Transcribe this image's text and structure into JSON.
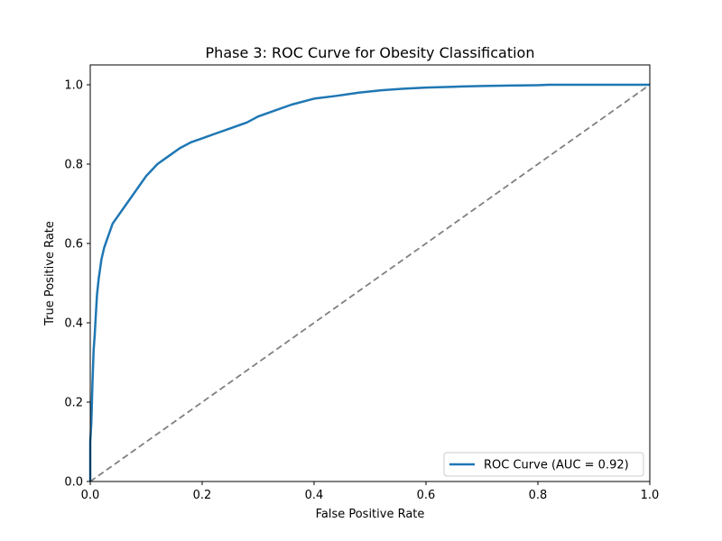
{
  "chart_data": {
    "type": "line",
    "title": "Phase 3: ROC Curve for Obesity Classification",
    "xlabel": "False Positive Rate",
    "ylabel": "True Positive Rate",
    "xlim": [
      0.0,
      1.0
    ],
    "ylim": [
      0.0,
      1.05
    ],
    "xticks": [
      "0.0",
      "0.2",
      "0.4",
      "0.6",
      "0.8",
      "1.0"
    ],
    "yticks": [
      "0.0",
      "0.2",
      "0.4",
      "0.6",
      "0.8",
      "1.0"
    ],
    "legend_position": "lower-right",
    "grid": false,
    "series": [
      {
        "name": "ROC Curve (AUC = 0.92)",
        "color": "#1f77b4",
        "style": "solid",
        "x": [
          0.0,
          0.0,
          0.002,
          0.003,
          0.004,
          0.005,
          0.006,
          0.008,
          0.01,
          0.012,
          0.015,
          0.018,
          0.02,
          0.025,
          0.03,
          0.035,
          0.04,
          0.05,
          0.06,
          0.07,
          0.08,
          0.09,
          0.1,
          0.11,
          0.12,
          0.14,
          0.16,
          0.18,
          0.2,
          0.22,
          0.25,
          0.28,
          0.3,
          0.33,
          0.36,
          0.4,
          0.44,
          0.48,
          0.52,
          0.56,
          0.6,
          0.65,
          0.7,
          0.75,
          0.8,
          0.82,
          0.9,
          1.0
        ],
        "y": [
          0.0,
          0.1,
          0.15,
          0.2,
          0.25,
          0.29,
          0.33,
          0.37,
          0.42,
          0.47,
          0.51,
          0.54,
          0.56,
          0.59,
          0.61,
          0.63,
          0.65,
          0.67,
          0.69,
          0.71,
          0.73,
          0.75,
          0.77,
          0.785,
          0.8,
          0.82,
          0.84,
          0.855,
          0.865,
          0.875,
          0.89,
          0.905,
          0.92,
          0.935,
          0.95,
          0.965,
          0.972,
          0.98,
          0.986,
          0.99,
          0.993,
          0.995,
          0.997,
          0.998,
          0.999,
          1.0,
          1.0,
          1.0
        ]
      },
      {
        "name": "",
        "color": "#808080",
        "style": "dashed",
        "x": [
          0.0,
          1.0
        ],
        "y": [
          0.0,
          1.0
        ]
      }
    ]
  }
}
